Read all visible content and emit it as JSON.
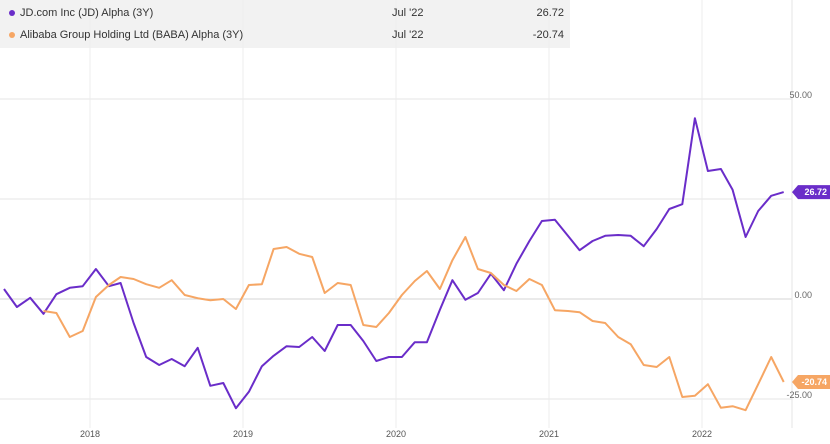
{
  "legend": [
    {
      "name": "JD.com Inc (JD) Alpha (3Y)",
      "date": "Jul '22",
      "value": "26.72",
      "color": "#6a2dc9"
    },
    {
      "name": "Alibaba Group Holding Ltd (BABA) Alpha (3Y)",
      "date": "Jul '22",
      "value": "-20.74",
      "color": "#f6a664"
    }
  ],
  "chart_data": {
    "type": "line",
    "grid": true,
    "x_tick_labels": [
      "2018",
      "2019",
      "2020",
      "2021",
      "2022"
    ],
    "y_tick_labels": [
      "50.00",
      "0.00",
      "-25.00"
    ],
    "ylim": [
      -27,
      50
    ],
    "end_labels": [
      "26.72",
      "-20.74"
    ],
    "series": [
      {
        "name": "JD.com Inc (JD) Alpha (3Y)",
        "color": "#6a2dc9",
        "points": [
          [
            "2017-06-15",
            2.5
          ],
          [
            "2017-07-15",
            -2.0
          ],
          [
            "2017-08-15",
            0.3
          ],
          [
            "2017-09-15",
            -3.7
          ],
          [
            "2017-10-15",
            1.2
          ],
          [
            "2017-11-15",
            2.8
          ],
          [
            "2017-12-15",
            3.2
          ],
          [
            "2018-01-15",
            7.5
          ],
          [
            "2018-02-15",
            3.2
          ],
          [
            "2018-03-15",
            4.0
          ],
          [
            "2018-04-15",
            -6.0
          ],
          [
            "2018-05-15",
            -14.5
          ],
          [
            "2018-06-15",
            -16.5
          ],
          [
            "2018-07-15",
            -15.0
          ],
          [
            "2018-08-15",
            -16.8
          ],
          [
            "2018-09-15",
            -12.2
          ],
          [
            "2018-10-15",
            -21.7
          ],
          [
            "2018-11-15",
            -21.0
          ],
          [
            "2018-12-15",
            -27.3
          ],
          [
            "2019-01-15",
            -23.2
          ],
          [
            "2019-02-15",
            -16.8
          ],
          [
            "2019-03-15",
            -14.2
          ],
          [
            "2019-04-15",
            -11.8
          ],
          [
            "2019-05-15",
            -12.0
          ],
          [
            "2019-06-15",
            -9.5
          ],
          [
            "2019-07-15",
            -13.0
          ],
          [
            "2019-08-15",
            -6.5
          ],
          [
            "2019-09-15",
            -6.5
          ],
          [
            "2019-10-15",
            -10.5
          ],
          [
            "2019-11-15",
            -15.5
          ],
          [
            "2019-12-15",
            -14.5
          ],
          [
            "2020-01-15",
            -14.5
          ],
          [
            "2020-02-15",
            -10.8
          ],
          [
            "2020-03-15",
            -10.8
          ],
          [
            "2020-04-15",
            -2.7
          ],
          [
            "2020-05-15",
            4.7
          ],
          [
            "2020-06-15",
            -0.2
          ],
          [
            "2020-07-15",
            1.5
          ],
          [
            "2020-08-15",
            6.3
          ],
          [
            "2020-09-15",
            2.2
          ],
          [
            "2020-10-15",
            8.8
          ],
          [
            "2020-11-15",
            14.5
          ],
          [
            "2020-12-15",
            19.5
          ],
          [
            "2021-01-15",
            19.8
          ],
          [
            "2021-02-15",
            15.8
          ],
          [
            "2021-03-15",
            12.2
          ],
          [
            "2021-04-15",
            14.5
          ],
          [
            "2021-05-15",
            15.8
          ],
          [
            "2021-06-15",
            16.0
          ],
          [
            "2021-07-15",
            15.8
          ],
          [
            "2021-08-15",
            13.2
          ],
          [
            "2021-09-15",
            17.5
          ],
          [
            "2021-10-15",
            22.5
          ],
          [
            "2021-11-15",
            23.7
          ],
          [
            "2021-12-15",
            45.2
          ],
          [
            "2022-01-15",
            32.0
          ],
          [
            "2022-02-15",
            32.5
          ],
          [
            "2022-03-15",
            27.3
          ],
          [
            "2022-04-15",
            15.5
          ],
          [
            "2022-05-15",
            22.0
          ],
          [
            "2022-06-15",
            25.8
          ],
          [
            "2022-07-15",
            26.72
          ]
        ]
      },
      {
        "name": "Alibaba Group Holding Ltd (BABA) Alpha (3Y)",
        "color": "#f6a664",
        "points": [
          [
            "2017-09-15",
            -3.0
          ],
          [
            "2017-10-15",
            -3.5
          ],
          [
            "2017-11-15",
            -9.5
          ],
          [
            "2017-12-15",
            -8.0
          ],
          [
            "2018-01-15",
            0.5
          ],
          [
            "2018-02-15",
            3.5
          ],
          [
            "2018-03-15",
            5.5
          ],
          [
            "2018-04-15",
            5.0
          ],
          [
            "2018-05-15",
            3.7
          ],
          [
            "2018-06-15",
            2.8
          ],
          [
            "2018-07-15",
            4.7
          ],
          [
            "2018-08-15",
            1.0
          ],
          [
            "2018-09-15",
            0.2
          ],
          [
            "2018-10-15",
            -0.3
          ],
          [
            "2018-11-15",
            0.0
          ],
          [
            "2018-12-15",
            -2.5
          ],
          [
            "2019-01-15",
            3.5
          ],
          [
            "2019-02-15",
            3.7
          ],
          [
            "2019-03-15",
            12.5
          ],
          [
            "2019-04-15",
            13.0
          ],
          [
            "2019-05-15",
            11.3
          ],
          [
            "2019-06-15",
            10.5
          ],
          [
            "2019-07-15",
            1.5
          ],
          [
            "2019-08-15",
            4.0
          ],
          [
            "2019-09-15",
            3.5
          ],
          [
            "2019-10-15",
            -6.5
          ],
          [
            "2019-11-15",
            -7.0
          ],
          [
            "2019-12-15",
            -3.5
          ],
          [
            "2020-01-15",
            1.0
          ],
          [
            "2020-02-15",
            4.5
          ],
          [
            "2020-03-15",
            7.0
          ],
          [
            "2020-04-15",
            2.5
          ],
          [
            "2020-05-15",
            9.7
          ],
          [
            "2020-06-15",
            15.5
          ],
          [
            "2020-07-15",
            7.5
          ],
          [
            "2020-08-15",
            6.5
          ],
          [
            "2020-09-15",
            3.5
          ],
          [
            "2020-10-15",
            2.0
          ],
          [
            "2020-11-15",
            5.0
          ],
          [
            "2020-12-15",
            3.5
          ],
          [
            "2021-01-15",
            -2.8
          ],
          [
            "2021-02-15",
            -3.0
          ],
          [
            "2021-03-15",
            -3.3
          ],
          [
            "2021-04-15",
            -5.5
          ],
          [
            "2021-05-15",
            -6.0
          ],
          [
            "2021-06-15",
            -9.5
          ],
          [
            "2021-07-15",
            -11.3
          ],
          [
            "2021-08-15",
            -16.5
          ],
          [
            "2021-09-15",
            -17.0
          ],
          [
            "2021-10-15",
            -14.5
          ],
          [
            "2021-11-15",
            -24.5
          ],
          [
            "2021-12-15",
            -24.2
          ],
          [
            "2022-01-15",
            -21.3
          ],
          [
            "2022-02-15",
            -27.2
          ],
          [
            "2022-03-15",
            -26.8
          ],
          [
            "2022-04-15",
            -27.8
          ],
          [
            "2022-05-15",
            -21.3
          ],
          [
            "2022-06-15",
            -14.5
          ],
          [
            "2022-07-15",
            -20.74
          ]
        ]
      }
    ]
  }
}
